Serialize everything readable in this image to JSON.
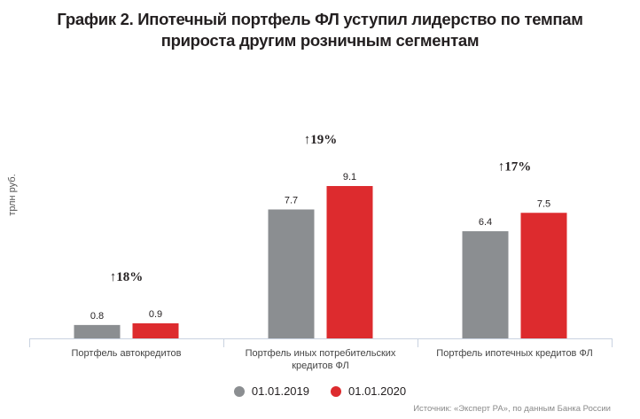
{
  "chart_data": {
    "type": "bar",
    "title": "График 2. Ипотечный портфель ФЛ уступил лидерство по темпам прироста другим розничным сегментам",
    "title_lines": [
      "График 2. Ипотечный портфель ФЛ уступил лидерство по темпам",
      "прироста другим розничным сегментам"
    ],
    "ylabel": "трлн руб.",
    "xlabel": "",
    "ylim": [
      0,
      10
    ],
    "grid": false,
    "categories": [
      [
        "Портфель автокредитов"
      ],
      [
        "Портфель иных потребительских",
        "кредитов ФЛ"
      ],
      [
        "Портфель ипотечных кредитов ФЛ"
      ]
    ],
    "series": [
      {
        "name": "01.01.2019",
        "color": "#8b8e91",
        "values": [
          0.8,
          7.7,
          6.4
        ],
        "labels": [
          "0.8",
          "7.7",
          "6.4"
        ]
      },
      {
        "name": "01.01.2020",
        "color": "#dd2b2e",
        "values": [
          0.9,
          9.1,
          7.5
        ],
        "labels": [
          "0.9",
          "9.1",
          "7.5"
        ]
      }
    ],
    "annotations": [
      "↑18%",
      "↑19%",
      "↑17%"
    ],
    "legend_position": "bottom-center",
    "source": "Источник: «Эксперт РА», по данным Банка России"
  }
}
